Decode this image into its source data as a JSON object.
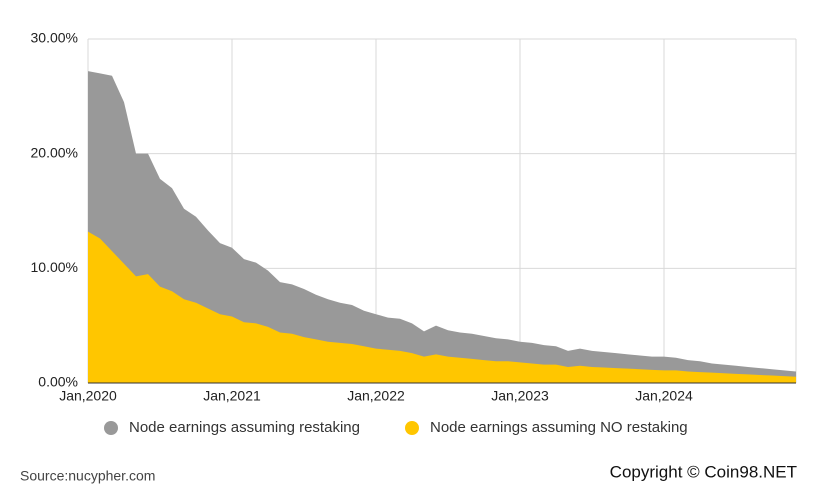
{
  "chart_data": {
    "type": "area",
    "categories": [
      "Jan,2020",
      null,
      null,
      null,
      null,
      null,
      null,
      null,
      null,
      null,
      null,
      null,
      "Jan,2021",
      null,
      null,
      null,
      null,
      null,
      null,
      null,
      null,
      null,
      null,
      null,
      "Jan,2022",
      null,
      null,
      null,
      null,
      null,
      null,
      null,
      null,
      null,
      null,
      null,
      "Jan,2023",
      null,
      null,
      null,
      null,
      null,
      null,
      null,
      null,
      null,
      null,
      null,
      "Jan,2024",
      null,
      null,
      null,
      null,
      null,
      null,
      null,
      null,
      null,
      null,
      null
    ],
    "series": [
      {
        "name": "Node earnings assuming restaking",
        "color": "#999999",
        "values": [
          27.2,
          27.0,
          26.8,
          24.5,
          20.0,
          20.0,
          17.8,
          17.0,
          15.2,
          14.5,
          13.3,
          12.2,
          11.8,
          10.8,
          10.5,
          9.8,
          8.8,
          8.6,
          8.2,
          7.7,
          7.3,
          7.0,
          6.8,
          6.3,
          6.0,
          5.7,
          5.6,
          5.2,
          4.5,
          5.0,
          4.6,
          4.4,
          4.3,
          4.1,
          3.9,
          3.8,
          3.6,
          3.5,
          3.3,
          3.2,
          2.8,
          3.0,
          2.8,
          2.7,
          2.6,
          2.5,
          2.4,
          2.3,
          2.3,
          2.2,
          2.0,
          1.9,
          1.7,
          1.6,
          1.5,
          1.4,
          1.3,
          1.2,
          1.1,
          1.0
        ]
      },
      {
        "name": "Node earnings assuming NO restaking",
        "color": "#ffc600",
        "values": [
          13.2,
          12.6,
          11.5,
          10.4,
          9.3,
          9.5,
          8.4,
          8.0,
          7.3,
          7.0,
          6.5,
          6.0,
          5.8,
          5.3,
          5.2,
          4.9,
          4.4,
          4.3,
          4.0,
          3.8,
          3.6,
          3.5,
          3.4,
          3.2,
          3.0,
          2.9,
          2.8,
          2.6,
          2.3,
          2.5,
          2.3,
          2.2,
          2.1,
          2.0,
          1.9,
          1.9,
          1.8,
          1.7,
          1.6,
          1.6,
          1.4,
          1.5,
          1.4,
          1.35,
          1.3,
          1.25,
          1.2,
          1.15,
          1.1,
          1.1,
          1.0,
          0.95,
          0.9,
          0.85,
          0.8,
          0.75,
          0.7,
          0.65,
          0.6,
          0.55
        ]
      }
    ],
    "ylim": [
      0,
      30
    ],
    "yticks": [
      {
        "value": 0,
        "label": "0.00%"
      },
      {
        "value": 10,
        "label": "10.00%"
      },
      {
        "value": 20,
        "label": "20.00%"
      },
      {
        "value": 30,
        "label": "30.00%"
      }
    ],
    "grid": true,
    "legend": "bottom",
    "source": "Source:nucypher.com",
    "watermark": "Copyright © Coin98.NET"
  }
}
